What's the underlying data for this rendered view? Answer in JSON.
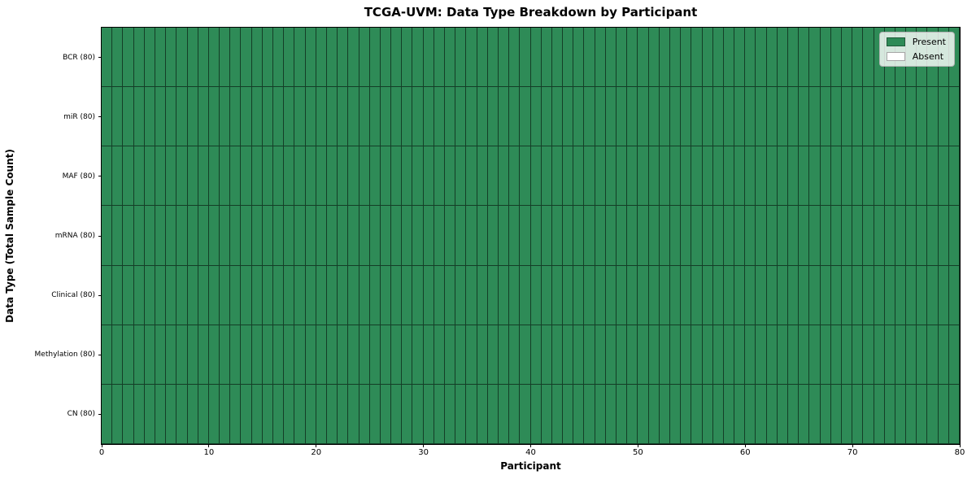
{
  "chart_data": {
    "type": "heatmap",
    "title": "TCGA-UVM: Data Type Breakdown by Participant",
    "xlabel": "Participant",
    "ylabel": "Data Type (Total Sample Count)",
    "xlim": [
      0,
      80
    ],
    "x_ticks": [
      0,
      10,
      20,
      30,
      40,
      50,
      60,
      70,
      80
    ],
    "n_participants": 80,
    "categories": [
      "BCR (80)",
      "miR (80)",
      "MAF (80)",
      "mRNA (80)",
      "Clinical (80)",
      "Methylation (80)",
      "CN (80)"
    ],
    "rows": [
      {
        "label": "BCR (80)",
        "data_type": "BCR",
        "total_samples": 80,
        "present_participants": 80,
        "absent_participants": 0
      },
      {
        "label": "miR (80)",
        "data_type": "miR",
        "total_samples": 80,
        "present_participants": 80,
        "absent_participants": 0
      },
      {
        "label": "MAF (80)",
        "data_type": "MAF",
        "total_samples": 80,
        "present_participants": 80,
        "absent_participants": 0
      },
      {
        "label": "mRNA (80)",
        "data_type": "mRNA",
        "total_samples": 80,
        "present_participants": 80,
        "absent_participants": 0
      },
      {
        "label": "Clinical (80)",
        "data_type": "Clinical",
        "total_samples": 80,
        "present_participants": 80,
        "absent_participants": 0
      },
      {
        "label": "Methylation (80)",
        "data_type": "Methylation",
        "total_samples": 80,
        "present_participants": 80,
        "absent_participants": 0
      },
      {
        "label": "CN (80)",
        "data_type": "CN",
        "total_samples": 80,
        "present_participants": 80,
        "absent_participants": 0
      }
    ],
    "value_encoding": {
      "present": 1,
      "absent": 0
    },
    "legend_position": "upper right",
    "grid": false
  },
  "legend": {
    "items": [
      {
        "label": "Present",
        "color": "#2e8b57"
      },
      {
        "label": "Absent",
        "color": "#ffffff"
      }
    ]
  },
  "colors": {
    "present": "#2e8b57",
    "absent": "#ffffff",
    "cell_edge": "rgba(0,0,0,0.55)",
    "spine": "#000000",
    "tick": "#000000",
    "background": "#ffffff",
    "text": "#000000"
  }
}
